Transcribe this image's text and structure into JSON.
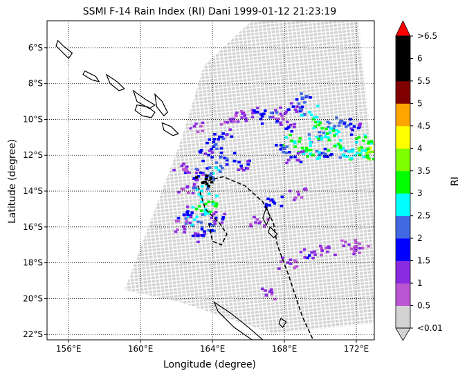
{
  "chart_data": {
    "type": "heatmap",
    "title": "SSMI F-14 Rain Index (RI) Dani 1999-01-12 21:23:19",
    "xlabel": "Longitude (degree)",
    "ylabel": "Latitude (degree)",
    "xlim": [
      154.8,
      173.0
    ],
    "ylim": [
      -22.3,
      -4.5
    ],
    "x_ticks": [
      {
        "value": 156,
        "label": "156°E"
      },
      {
        "value": 160,
        "label": "160°E"
      },
      {
        "value": 164,
        "label": "164°E"
      },
      {
        "value": 168,
        "label": "168°E"
      },
      {
        "value": 172,
        "label": "172°E"
      }
    ],
    "y_ticks": [
      {
        "value": -6,
        "label": "6°S"
      },
      {
        "value": -8,
        "label": "8°S"
      },
      {
        "value": -10,
        "label": "10°S"
      },
      {
        "value": -12,
        "label": "12°S"
      },
      {
        "value": -14,
        "label": "14°S"
      },
      {
        "value": -16,
        "label": "16°S"
      },
      {
        "value": -18,
        "label": "18°S"
      },
      {
        "value": -20,
        "label": "20°S"
      },
      {
        "value": -22,
        "label": "22°S"
      }
    ],
    "grid": true,
    "colorbar": {
      "label": "RI",
      "levels": [
        "<0.01",
        "0.5",
        "1",
        "1.5",
        "2",
        "2.5",
        "3",
        "3.5",
        "4",
        "4.5",
        "5",
        "5.5",
        "6",
        ">6.5"
      ],
      "colors": [
        "#d3d3d3",
        "#ba55d3",
        "#8a2be2",
        "#0000ff",
        "#4169e1",
        "#00ffff",
        "#00ff00",
        "#7fff00",
        "#ffff00",
        "#ffa500",
        "#800000",
        "#000000",
        "#000000",
        "#ff0000"
      ],
      "under_color": "#d3d3d3",
      "over_color": "#ff0000"
    },
    "swath": {
      "no_rain_color": "#d3d3d3",
      "outline": [
        [
          167.5,
          -4.5
        ],
        [
          173.0,
          -4.5
        ],
        [
          173.0,
          -22.3
        ],
        [
          166.5,
          -22.3
        ],
        [
          161.5,
          -20.0
        ],
        [
          158.5,
          -19.0
        ],
        [
          160.5,
          -15.0
        ],
        [
          162.5,
          -11.0
        ],
        [
          164.2,
          -7.0
        ]
      ]
    },
    "rain_cells": [
      {
        "lon": 165.0,
        "lat": -10.0,
        "ri": 0.5
      },
      {
        "lon": 165.8,
        "lat": -9.8,
        "ri": 0.5
      },
      {
        "lon": 166.5,
        "lat": -9.6,
        "ri": 1.0
      },
      {
        "lon": 167.2,
        "lat": -9.9,
        "ri": 1.5
      },
      {
        "lon": 167.8,
        "lat": -9.7,
        "ri": 0.5
      },
      {
        "lon": 168.5,
        "lat": -9.3,
        "ri": 1.0
      },
      {
        "lon": 169.0,
        "lat": -8.8,
        "ri": 1.5
      },
      {
        "lon": 169.4,
        "lat": -9.6,
        "ri": 2.0
      },
      {
        "lon": 170.0,
        "lat": -10.2,
        "ri": 2.5
      },
      {
        "lon": 170.6,
        "lat": -10.5,
        "ri": 2.0
      },
      {
        "lon": 171.2,
        "lat": -10.1,
        "ri": 1.5
      },
      {
        "lon": 171.8,
        "lat": -10.6,
        "ri": 1.0
      },
      {
        "lon": 172.4,
        "lat": -11.2,
        "ri": 2.5
      },
      {
        "lon": 172.8,
        "lat": -11.6,
        "ri": 3.5
      },
      {
        "lon": 172.6,
        "lat": -11.9,
        "ri": 3.0
      },
      {
        "lon": 172.2,
        "lat": -12.0,
        "ri": 2.5
      },
      {
        "lon": 171.6,
        "lat": -11.8,
        "ri": 2.0
      },
      {
        "lon": 170.8,
        "lat": -11.5,
        "ri": 2.5
      },
      {
        "lon": 170.2,
        "lat": -11.9,
        "ri": 1.5
      },
      {
        "lon": 169.6,
        "lat": -12.0,
        "ri": 2.5
      },
      {
        "lon": 169.0,
        "lat": -11.6,
        "ri": 2.5
      },
      {
        "lon": 168.4,
        "lat": -11.2,
        "ri": 2.5
      },
      {
        "lon": 168.0,
        "lat": -11.6,
        "ri": 1.5
      },
      {
        "lon": 168.6,
        "lat": -12.1,
        "ri": 1.0
      },
      {
        "lon": 169.8,
        "lat": -11.0,
        "ri": 2.0
      },
      {
        "lon": 170.4,
        "lat": -10.8,
        "ri": 2.5
      },
      {
        "lon": 168.2,
        "lat": -10.5,
        "ri": 1.0
      },
      {
        "lon": 164.6,
        "lat": -10.8,
        "ri": 1.0
      },
      {
        "lon": 164.2,
        "lat": -11.4,
        "ri": 1.5
      },
      {
        "lon": 163.8,
        "lat": -12.0,
        "ri": 1.0
      },
      {
        "lon": 164.8,
        "lat": -12.2,
        "ri": 1.5
      },
      {
        "lon": 164.2,
        "lat": -12.7,
        "ri": 2.0
      },
      {
        "lon": 163.6,
        "lat": -13.1,
        "ri": 1.5
      },
      {
        "lon": 163.0,
        "lat": -13.3,
        "ri": 1.0
      },
      {
        "lon": 162.6,
        "lat": -13.8,
        "ri": 0.5
      },
      {
        "lon": 163.4,
        "lat": -14.0,
        "ri": 2.0
      },
      {
        "lon": 163.8,
        "lat": -14.6,
        "ri": 2.5
      },
      {
        "lon": 163.4,
        "lat": -15.1,
        "ri": 2.5
      },
      {
        "lon": 163.0,
        "lat": -15.6,
        "ri": 2.0
      },
      {
        "lon": 162.6,
        "lat": -15.2,
        "ri": 1.0
      },
      {
        "lon": 162.4,
        "lat": -16.0,
        "ri": 0.5
      },
      {
        "lon": 163.2,
        "lat": -16.5,
        "ri": 1.0
      },
      {
        "lon": 163.8,
        "lat": -16.2,
        "ri": 1.5
      },
      {
        "lon": 164.2,
        "lat": -15.5,
        "ri": 1.0
      },
      {
        "lon": 162.3,
        "lat": -12.6,
        "ri": 0.5
      },
      {
        "lon": 163.6,
        "lat": -13.5,
        "ri": 5.5
      },
      {
        "lon": 165.6,
        "lat": -12.6,
        "ri": 1.0
      },
      {
        "lon": 163.0,
        "lat": -10.4,
        "ri": 0.5
      },
      {
        "lon": 166.6,
        "lat": -15.8,
        "ri": 0.5
      },
      {
        "lon": 168.8,
        "lat": -14.2,
        "ri": 0.5
      },
      {
        "lon": 167.4,
        "lat": -14.6,
        "ri": 1.0
      },
      {
        "lon": 168.2,
        "lat": -18.0,
        "ri": 0.5
      },
      {
        "lon": 169.4,
        "lat": -17.6,
        "ri": 1.0
      },
      {
        "lon": 170.4,
        "lat": -17.4,
        "ri": 0.5
      },
      {
        "lon": 171.6,
        "lat": -17.0,
        "ri": 0.5
      },
      {
        "lon": 172.2,
        "lat": -17.2,
        "ri": 0.5
      },
      {
        "lon": 167.0,
        "lat": -19.8,
        "ri": 0.5
      }
    ],
    "coastlines": [
      [
        [
          155.4,
          -5.6
        ],
        [
          155.7,
          -5.9
        ],
        [
          156.2,
          -6.3
        ],
        [
          156.0,
          -6.6
        ],
        [
          155.6,
          -6.2
        ],
        [
          155.3,
          -5.9
        ]
      ],
      [
        [
          156.9,
          -7.3
        ],
        [
          157.5,
          -7.6
        ],
        [
          157.7,
          -7.9
        ],
        [
          157.3,
          -7.8
        ],
        [
          156.8,
          -7.5
        ]
      ],
      [
        [
          158.1,
          -7.5
        ],
        [
          158.7,
          -7.9
        ],
        [
          159.1,
          -8.3
        ],
        [
          158.8,
          -8.4
        ],
        [
          158.3,
          -8.0
        ]
      ],
      [
        [
          159.6,
          -8.4
        ],
        [
          160.3,
          -8.9
        ],
        [
          160.8,
          -9.2
        ],
        [
          160.5,
          -9.4
        ],
        [
          159.8,
          -9.0
        ]
      ],
      [
        [
          160.8,
          -8.6
        ],
        [
          161.2,
          -9.0
        ],
        [
          161.5,
          -9.6
        ],
        [
          161.3,
          -9.8
        ],
        [
          160.9,
          -9.3
        ]
      ],
      [
        [
          159.8,
          -9.2
        ],
        [
          160.4,
          -9.3
        ],
        [
          160.8,
          -9.6
        ],
        [
          160.6,
          -9.9
        ],
        [
          160.1,
          -9.8
        ],
        [
          159.7,
          -9.5
        ]
      ],
      [
        [
          161.2,
          -10.2
        ],
        [
          161.7,
          -10.4
        ],
        [
          162.1,
          -10.8
        ],
        [
          161.8,
          -10.9
        ],
        [
          161.3,
          -10.6
        ]
      ],
      [
        [
          167.0,
          -14.9
        ],
        [
          167.2,
          -15.4
        ],
        [
          167.0,
          -15.9
        ],
        [
          166.8,
          -15.5
        ]
      ],
      [
        [
          167.2,
          -16.0
        ],
        [
          167.6,
          -16.4
        ],
        [
          167.4,
          -16.6
        ],
        [
          167.1,
          -16.3
        ]
      ],
      [
        [
          164.1,
          -20.2
        ],
        [
          165.0,
          -20.8
        ],
        [
          166.0,
          -21.6
        ],
        [
          166.8,
          -22.3
        ],
        [
          166.2,
          -22.3
        ],
        [
          165.2,
          -21.6
        ],
        [
          164.3,
          -20.7
        ]
      ],
      [
        [
          167.8,
          -21.1
        ],
        [
          168.1,
          -21.3
        ],
        [
          167.9,
          -21.6
        ],
        [
          167.7,
          -21.4
        ]
      ]
    ],
    "track": [
      [
        163.4,
        -13.5
      ],
      [
        164.6,
        -13.2
      ],
      [
        165.8,
        -13.7
      ],
      [
        166.8,
        -14.6
      ],
      [
        167.4,
        -15.8
      ],
      [
        167.6,
        -17.0
      ],
      [
        168.2,
        -18.6
      ],
      [
        168.6,
        -19.8
      ],
      [
        169.0,
        -21.0
      ],
      [
        169.6,
        -22.3
      ]
    ],
    "track_loop": [
      [
        163.2,
        -13.7
      ],
      [
        163.6,
        -15.0
      ],
      [
        164.4,
        -15.8
      ],
      [
        164.8,
        -16.4
      ],
      [
        164.5,
        -17.0
      ],
      [
        164.0,
        -16.8
      ],
      [
        163.8,
        -15.8
      ]
    ]
  }
}
